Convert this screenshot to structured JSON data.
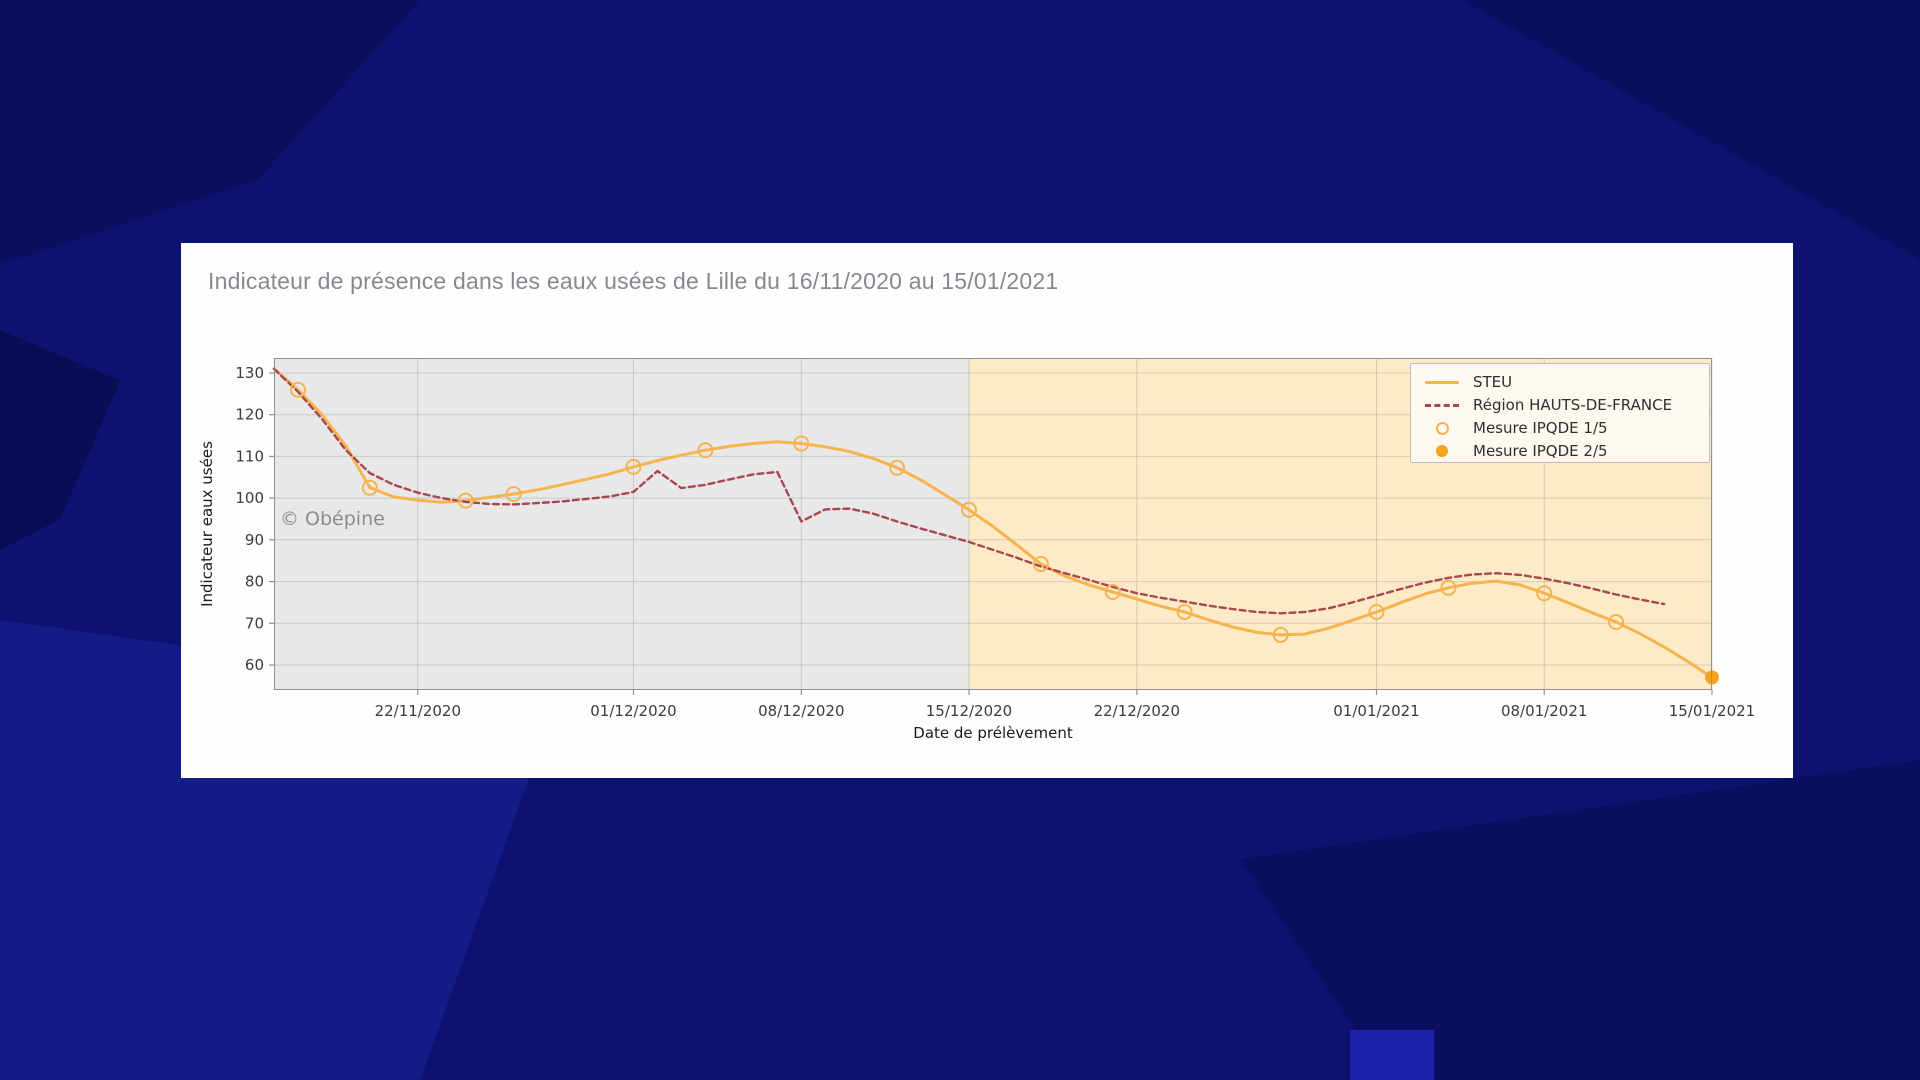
{
  "window": {
    "title": "Indicateur de présence dans les eaux usées de Lille du 16/11/2020 au 15/01/2021"
  },
  "colors": {
    "page_bg": "#0d1270",
    "card_bg": "#fefefe",
    "title_text": "#85898f",
    "steu_line": "#f6b44e",
    "region_line": "#a84750",
    "marker_filled": "#f5a51d",
    "gray_region": "#e8e8e9",
    "orange_region": "#fdebc7",
    "grid": "#8c8c8c",
    "spine": "#909090",
    "tick_text": "#3c3c3c",
    "axis_label_text": "#1a1a1a",
    "watermark_text": "#6e6e6e",
    "legend_bg": "#fdf9f0",
    "legend_border": "#bdbdbd"
  },
  "chart_data": {
    "type": "line",
    "title": "Indicateur de présence dans les eaux usées de Lille du 16/11/2020 au 15/01/2021",
    "xlabel": "Date de prélèvement",
    "ylabel": "Indicateur eaux usées",
    "watermark": "© Obépine",
    "date_start": "16/11/2020",
    "date_end": "15/01/2021",
    "ylim": [
      54,
      133.6
    ],
    "yticks": [
      60,
      70,
      80,
      90,
      100,
      110,
      120,
      130
    ],
    "x_domain_days": [
      0,
      60
    ],
    "xticks": [
      {
        "day": 6,
        "label": "22/11/2020"
      },
      {
        "day": 15,
        "label": "01/12/2020"
      },
      {
        "day": 22,
        "label": "08/12/2020"
      },
      {
        "day": 29,
        "label": "15/12/2020"
      },
      {
        "day": 36,
        "label": "22/12/2020"
      },
      {
        "day": 46,
        "label": "01/01/2021"
      },
      {
        "day": 53,
        "label": "08/01/2021"
      },
      {
        "day": 60,
        "label": "15/01/2021"
      }
    ],
    "grid": true,
    "legend_position": "top-right",
    "shaded_regions": [
      {
        "from_day": 0,
        "to_day": 29,
        "color": "#e8e8e9",
        "name": "past-period"
      },
      {
        "from_day": 29,
        "to_day": 60,
        "color": "#fdebc7",
        "name": "recent-period"
      }
    ],
    "series": [
      {
        "name": "STEU",
        "kind": "line",
        "style": "solid",
        "color": "#f6b44e",
        "width": 3,
        "data_name": "steu-line",
        "points": [
          [
            0,
            131
          ],
          [
            1,
            126
          ],
          [
            2,
            120
          ],
          [
            3,
            112.5
          ],
          [
            4,
            102.5
          ],
          [
            5,
            100.3
          ],
          [
            6,
            99.5
          ],
          [
            7,
            99
          ],
          [
            8,
            99.4
          ],
          [
            9,
            100.2
          ],
          [
            10,
            101
          ],
          [
            11,
            102
          ],
          [
            12,
            103.2
          ],
          [
            13,
            104.5
          ],
          [
            14,
            105.8
          ],
          [
            15,
            107.5
          ],
          [
            16,
            109
          ],
          [
            17,
            110.3
          ],
          [
            18,
            111.5
          ],
          [
            19,
            112.4
          ],
          [
            20,
            113.1
          ],
          [
            21,
            113.5
          ],
          [
            22,
            113.1
          ],
          [
            23,
            112.3
          ],
          [
            24,
            111.2
          ],
          [
            25,
            109.5
          ],
          [
            26,
            107.3
          ],
          [
            27,
            104.3
          ],
          [
            28,
            100.8
          ],
          [
            29,
            97.2
          ],
          [
            30,
            93.2
          ],
          [
            31,
            88.8
          ],
          [
            32,
            84.2
          ],
          [
            33,
            81.3
          ],
          [
            34,
            79.2
          ],
          [
            35,
            77.5
          ],
          [
            36,
            75.8
          ],
          [
            37,
            74.1
          ],
          [
            38,
            72.7
          ],
          [
            39,
            70.8
          ],
          [
            40,
            69.1
          ],
          [
            41,
            67.8
          ],
          [
            42,
            67.2
          ],
          [
            43,
            67.4
          ],
          [
            44,
            68.8
          ],
          [
            45,
            70.7
          ],
          [
            46,
            72.7
          ],
          [
            47,
            74.9
          ],
          [
            48,
            77
          ],
          [
            49,
            78.5
          ],
          [
            50,
            79.6
          ],
          [
            51,
            80.1
          ],
          [
            52,
            79.2
          ],
          [
            53,
            77.2
          ],
          [
            54,
            74.9
          ],
          [
            55,
            72.5
          ],
          [
            56,
            70.3
          ],
          [
            57,
            67.5
          ],
          [
            58,
            64.3
          ],
          [
            59,
            60.8
          ],
          [
            60,
            57
          ]
        ]
      },
      {
        "name": "Région HAUTS-DE-FRANCE",
        "kind": "line",
        "style": "dashed",
        "color": "#a84750",
        "width": 2.4,
        "data_name": "region-line",
        "points": [
          [
            0,
            131
          ],
          [
            1,
            125.5
          ],
          [
            2,
            119
          ],
          [
            3,
            111.5
          ],
          [
            4,
            106
          ],
          [
            5,
            103.2
          ],
          [
            6,
            101.3
          ],
          [
            7,
            100
          ],
          [
            8,
            99.1
          ],
          [
            9,
            98.6
          ],
          [
            10,
            98.5
          ],
          [
            11,
            98.8
          ],
          [
            12,
            99.2
          ],
          [
            13,
            99.8
          ],
          [
            14,
            100.4
          ],
          [
            15,
            101.5
          ],
          [
            16,
            106.5
          ],
          [
            17,
            102.4
          ],
          [
            18,
            103.2
          ],
          [
            19,
            104.5
          ],
          [
            20,
            105.7
          ],
          [
            21,
            106.3
          ],
          [
            22,
            94.4
          ],
          [
            23,
            97.3
          ],
          [
            24,
            97.5
          ],
          [
            25,
            96.3
          ],
          [
            26,
            94.4
          ],
          [
            27,
            92.7
          ],
          [
            28,
            91.1
          ],
          [
            29,
            89.5
          ],
          [
            30,
            87.6
          ],
          [
            31,
            85.7
          ],
          [
            32,
            83.6
          ],
          [
            33,
            82
          ],
          [
            34,
            80.4
          ],
          [
            35,
            78.7
          ],
          [
            36,
            77.2
          ],
          [
            37,
            76.1
          ],
          [
            38,
            75.2
          ],
          [
            39,
            74.2
          ],
          [
            40,
            73.4
          ],
          [
            41,
            72.7
          ],
          [
            42,
            72.4
          ],
          [
            43,
            72.7
          ],
          [
            44,
            73.6
          ],
          [
            45,
            75
          ],
          [
            46,
            76.6
          ],
          [
            47,
            78.2
          ],
          [
            48,
            79.7
          ],
          [
            49,
            80.9
          ],
          [
            50,
            81.7
          ],
          [
            51,
            82
          ],
          [
            52,
            81.6
          ],
          [
            53,
            80.7
          ],
          [
            54,
            79.6
          ],
          [
            55,
            78.3
          ],
          [
            56,
            76.9
          ],
          [
            57,
            75.7
          ],
          [
            58,
            74.6
          ]
        ]
      },
      {
        "name": "Mesure IPQDE 1/5",
        "kind": "scatter",
        "marker": "hollow-circle",
        "color": "#f6b44e",
        "data_name": "mesure-1-5-markers",
        "points": [
          [
            1,
            126
          ],
          [
            4,
            102.5
          ],
          [
            8,
            99.4
          ],
          [
            10,
            101
          ],
          [
            15,
            107.5
          ],
          [
            18,
            111.5
          ],
          [
            22,
            113.1
          ],
          [
            26,
            107.3
          ],
          [
            29,
            97.2
          ],
          [
            32,
            84.2
          ],
          [
            35,
            77.5
          ],
          [
            38,
            72.7
          ],
          [
            42,
            67.2
          ],
          [
            46,
            72.7
          ],
          [
            49,
            78.5
          ],
          [
            53,
            77.2
          ],
          [
            56,
            70.3
          ]
        ]
      },
      {
        "name": "Mesure IPQDE 2/5",
        "kind": "scatter",
        "marker": "filled-circle",
        "color": "#f5a51d",
        "data_name": "mesure-2-5-markers",
        "points": [
          [
            60,
            57
          ]
        ]
      }
    ]
  }
}
